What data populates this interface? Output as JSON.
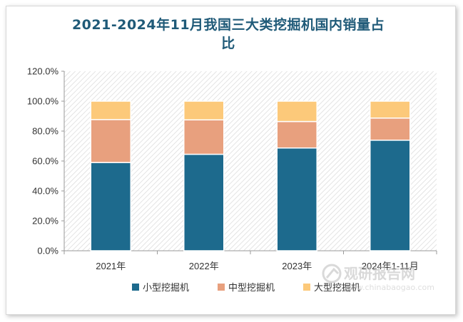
{
  "title": "2021-2024年11月我国三大类挖掘机国内销量占比",
  "title_lines": [
    "2021-2024年11月我国三大类挖掘机国内销量占",
    "比"
  ],
  "watermark": {
    "name": "观研报告网",
    "url": "www.chinabaogao.com"
  },
  "chart_data": {
    "type": "bar",
    "stacked": true,
    "categories": [
      "2021年",
      "2022年",
      "2023年",
      "2024年1-11月"
    ],
    "series": [
      {
        "name": "小型挖掘机",
        "values": [
          59.0,
          64.5,
          68.7,
          73.9
        ]
      },
      {
        "name": "中型挖掘机",
        "values": [
          28.7,
          23.0,
          17.7,
          14.8
        ]
      },
      {
        "name": "大型挖掘机",
        "values": [
          12.3,
          12.5,
          13.6,
          11.3
        ]
      }
    ],
    "yticks": [
      "0.0%",
      "20.0%",
      "40.0%",
      "60.0%",
      "80.0%",
      "100.0%",
      "120.0%"
    ],
    "ylim": [
      0,
      120
    ],
    "colors": [
      "#1d6a8d",
      "#e8a07e",
      "#fcc97a"
    ],
    "legend_position": "bottom",
    "grid": false
  }
}
